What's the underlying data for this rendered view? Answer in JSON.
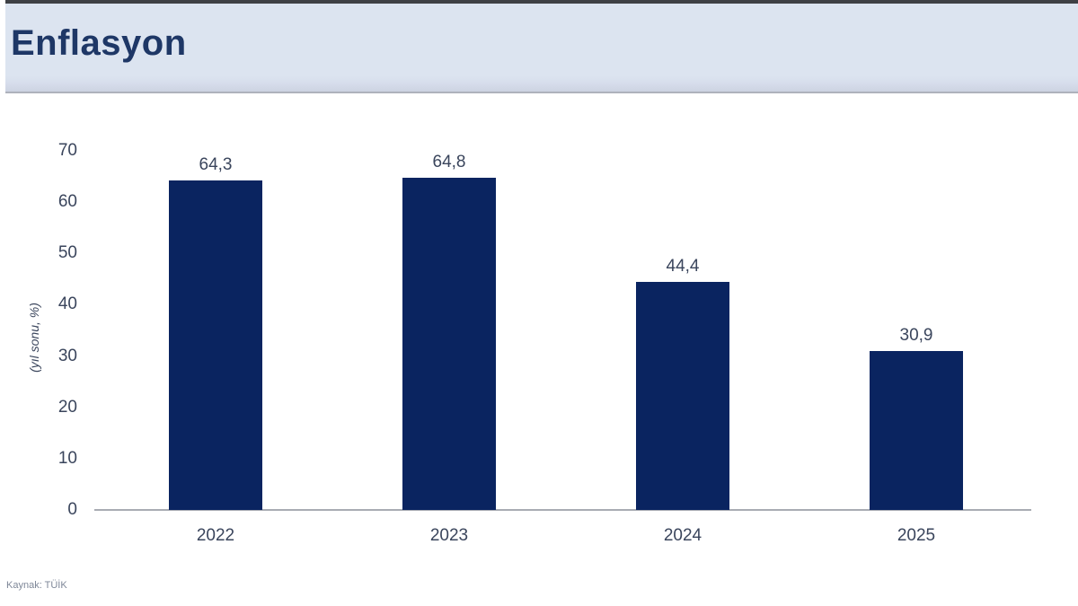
{
  "header": {
    "title": "Enflasyon"
  },
  "source": {
    "label": "Kaynak: TÜİK"
  },
  "chart_data": {
    "type": "bar",
    "title": "Enflasyon",
    "categories": [
      "2022",
      "2023",
      "2024",
      "2025"
    ],
    "values": [
      64.3,
      64.8,
      44.4,
      30.9
    ],
    "value_labels": [
      "64,3",
      "64,8",
      "44,4",
      "30,9"
    ],
    "ylabel": "(yıl sonu, %)",
    "xlabel": "",
    "ylim": [
      0,
      70
    ],
    "yticks": [
      0,
      10,
      20,
      30,
      40,
      50,
      60,
      70
    ],
    "grid": false,
    "legend_position": "none",
    "bar_color": "#0a2460",
    "axis_line_color": "#a9acb3",
    "label_color": "#3a455c"
  }
}
